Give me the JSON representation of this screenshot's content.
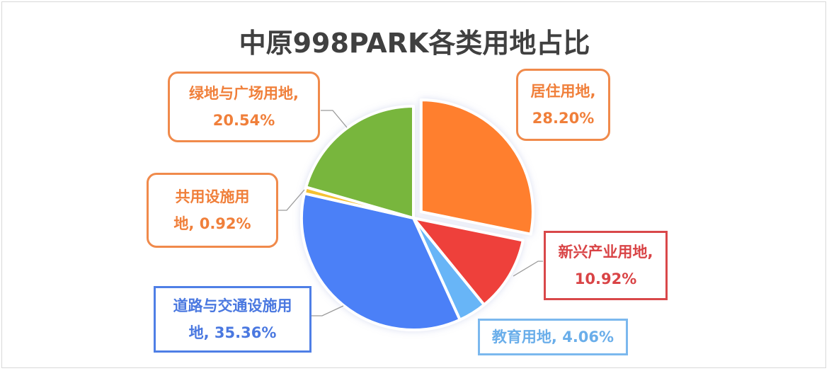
{
  "title": "中原998PARK各类用地占比",
  "chart_data": {
    "type": "pie",
    "title": "中原998PARK各类用地占比",
    "start_angle_deg": 0,
    "direction": "clockwise",
    "exploded": [
      "居住用地"
    ],
    "legend": "none (data callout labels)",
    "slices": [
      {
        "name": "居住用地",
        "value": 28.2,
        "color": "#FF7F2F"
      },
      {
        "name": "新兴产业用地",
        "value": 10.92,
        "color": "#EE3F3B"
      },
      {
        "name": "教育用地",
        "value": 4.06,
        "color": "#67B5F7"
      },
      {
        "name": "道路与交通设施用地",
        "value": 35.36,
        "color": "#4C80F7"
      },
      {
        "name": "共用设施用地",
        "value": 0.92,
        "color": "#F5C132"
      },
      {
        "name": "绿地与广场用地",
        "value": 20.54,
        "color": "#78B63E"
      }
    ]
  },
  "labels": {
    "residential": {
      "line1": "居住用地,",
      "line2": "28.20%",
      "color": "#F07F3A"
    },
    "industry": {
      "line1": "新兴产业用地,",
      "line2": "10.92%",
      "color": "#D94446"
    },
    "education": {
      "line1": "教育用地, 4.06%",
      "color": "#6AAEEA"
    },
    "roads": {
      "line1": "道路与交通设施用",
      "line2": "地, 35.36%",
      "color": "#4A78E0"
    },
    "utilities": {
      "line1": "共用设施用",
      "line2": "地, 0.92%",
      "color": "#F07F3A"
    },
    "green": {
      "line1": "绿地与广场用地,",
      "line2": "20.54%",
      "color": "#F07F3A"
    }
  }
}
